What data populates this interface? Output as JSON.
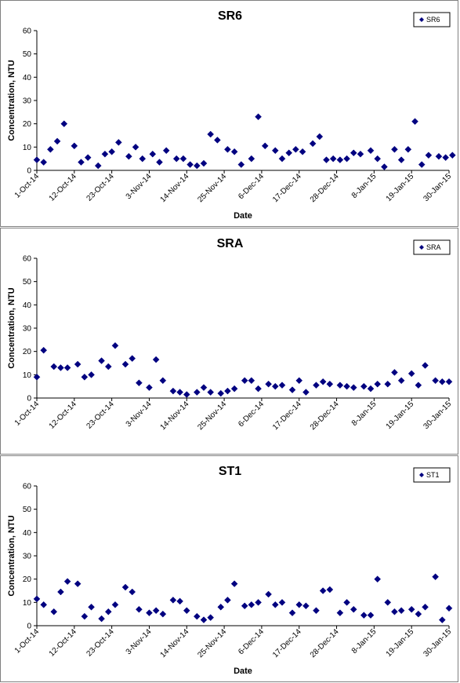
{
  "chart_data": [
    {
      "type": "scatter",
      "title": "SR6",
      "xlabel": "Date",
      "ylabel": "Concentration, NTU",
      "ylim": [
        0,
        60
      ],
      "yticks": [
        "0",
        "10",
        "20",
        "30",
        "40",
        "50",
        "60"
      ],
      "xlim": [
        "2014-10-01",
        "2015-01-30"
      ],
      "xticks": [
        "1-Oct-14",
        "12-Oct-14",
        "23-Oct-14",
        "3-Nov-14",
        "14-Nov-14",
        "25-Nov-14",
        "6-Dec-14",
        "17-Dec-14",
        "28-Dec-14",
        "8-Jan-15",
        "19-Jan-15",
        "30-Jan-15"
      ],
      "grid": false,
      "legend_position": "top-right",
      "marker_color": "#000080",
      "series": [
        {
          "name": "SR6",
          "x": [
            "2014-10-01",
            "2014-10-03",
            "2014-10-05",
            "2014-10-07",
            "2014-10-09",
            "2014-10-12",
            "2014-10-14",
            "2014-10-16",
            "2014-10-19",
            "2014-10-21",
            "2014-10-23",
            "2014-10-25",
            "2014-10-28",
            "2014-10-30",
            "2014-11-01",
            "2014-11-04",
            "2014-11-06",
            "2014-11-08",
            "2014-11-11",
            "2014-11-13",
            "2014-11-15",
            "2014-11-17",
            "2014-11-19",
            "2014-11-21",
            "2014-11-23",
            "2014-11-26",
            "2014-11-28",
            "2014-11-30",
            "2014-12-03",
            "2014-12-05",
            "2014-12-07",
            "2014-12-10",
            "2014-12-12",
            "2014-12-14",
            "2014-12-16",
            "2014-12-18",
            "2014-12-21",
            "2014-12-23",
            "2014-12-25",
            "2014-12-27",
            "2014-12-29",
            "2014-12-31",
            "2015-01-02",
            "2015-01-04",
            "2015-01-07",
            "2015-01-09",
            "2015-01-11",
            "2015-01-14",
            "2015-01-16",
            "2015-01-18",
            "2015-01-20",
            "2015-01-22",
            "2015-01-24",
            "2015-01-27",
            "2015-01-29",
            "2015-01-31"
          ],
          "y": [
            4.5,
            3.5,
            9.0,
            12.5,
            20.0,
            10.5,
            3.5,
            5.5,
            2.0,
            7.0,
            8.0,
            12.0,
            6.0,
            10.0,
            5.0,
            7.0,
            3.5,
            8.5,
            5.0,
            5.0,
            2.5,
            2.0,
            3.0,
            15.5,
            13.0,
            9.0,
            8.0,
            2.5,
            5.0,
            23.0,
            10.5,
            8.5,
            5.0,
            7.5,
            9.0,
            8.0,
            11.5,
            14.5,
            4.5,
            5.0,
            4.5,
            5.0,
            7.5,
            7.0,
            8.5,
            5.0,
            1.5,
            9.0,
            4.5,
            9.0,
            21.0,
            2.5,
            6.5,
            6.0,
            5.5,
            6.5
          ]
        }
      ]
    },
    {
      "type": "scatter",
      "title": "SRA",
      "xlabel": "",
      "ylabel": "Concentration, NTU",
      "ylim": [
        0,
        60
      ],
      "yticks": [
        "0",
        "10",
        "20",
        "30",
        "40",
        "50",
        "60"
      ],
      "xlim": [
        "2014-10-01",
        "2015-01-30"
      ],
      "xticks": [
        "1-Oct-14",
        "12-Oct-14",
        "23-Oct-14",
        "3-Nov-14",
        "14-Nov-14",
        "25-Nov-14",
        "6-Dec-14",
        "17-Dec-14",
        "28-Dec-14",
        "8-Jan-15",
        "19-Jan-15",
        "30-Jan-15"
      ],
      "grid": false,
      "legend_position": "top-right",
      "marker_color": "#000080",
      "series": [
        {
          "name": "SRA",
          "x": [
            "2014-10-01",
            "2014-10-03",
            "2014-10-06",
            "2014-10-08",
            "2014-10-10",
            "2014-10-13",
            "2014-10-15",
            "2014-10-17",
            "2014-10-20",
            "2014-10-22",
            "2014-10-24",
            "2014-10-27",
            "2014-10-29",
            "2014-10-31",
            "2014-11-03",
            "2014-11-05",
            "2014-11-07",
            "2014-11-10",
            "2014-11-12",
            "2014-11-14",
            "2014-11-17",
            "2014-11-19",
            "2014-11-21",
            "2014-11-24",
            "2014-11-26",
            "2014-11-28",
            "2014-12-01",
            "2014-12-03",
            "2014-12-05",
            "2014-12-08",
            "2014-12-10",
            "2014-12-12",
            "2014-12-15",
            "2014-12-17",
            "2014-12-19",
            "2014-12-22",
            "2014-12-24",
            "2014-12-26",
            "2014-12-29",
            "2014-12-31",
            "2015-01-02",
            "2015-01-05",
            "2015-01-07",
            "2015-01-09",
            "2015-01-12",
            "2015-01-14",
            "2015-01-16",
            "2015-01-19",
            "2015-01-21",
            "2015-01-23",
            "2015-01-26",
            "2015-01-28",
            "2015-01-30"
          ],
          "y": [
            9.0,
            20.5,
            13.5,
            13.0,
            13.0,
            14.5,
            9.0,
            10.0,
            16.0,
            13.5,
            22.5,
            14.5,
            17.0,
            6.5,
            4.5,
            16.5,
            7.5,
            3.0,
            2.5,
            1.5,
            2.5,
            4.5,
            2.5,
            2.0,
            3.0,
            4.0,
            7.5,
            7.5,
            4.0,
            6.0,
            5.0,
            5.5,
            3.5,
            7.5,
            2.5,
            5.5,
            7.0,
            6.0,
            5.5,
            5.0,
            4.5,
            5.0,
            4.0,
            6.0,
            6.0,
            11.0,
            7.5,
            10.5,
            5.5,
            14.0,
            7.5,
            7.0,
            7.0
          ]
        }
      ]
    },
    {
      "type": "scatter",
      "title": "ST1",
      "xlabel": "Date",
      "ylabel": "Concentration, NTU",
      "ylim": [
        0,
        60
      ],
      "yticks": [
        "0",
        "10",
        "20",
        "30",
        "40",
        "50",
        "60"
      ],
      "xlim": [
        "2014-10-01",
        "2015-01-30"
      ],
      "xticks": [
        "1-Oct-14",
        "12-Oct-14",
        "23-Oct-14",
        "3-Nov-14",
        "14-Nov-14",
        "25-Nov-14",
        "6-Dec-14",
        "17-Dec-14",
        "28-Dec-14",
        "8-Jan-15",
        "19-Jan-15",
        "30-Jan-15"
      ],
      "grid": false,
      "legend_position": "top-right",
      "marker_color": "#000080",
      "series": [
        {
          "name": "ST1",
          "x": [
            "2014-10-01",
            "2014-10-03",
            "2014-10-06",
            "2014-10-08",
            "2014-10-10",
            "2014-10-13",
            "2014-10-15",
            "2014-10-17",
            "2014-10-20",
            "2014-10-22",
            "2014-10-24",
            "2014-10-27",
            "2014-10-29",
            "2014-10-31",
            "2014-11-03",
            "2014-11-05",
            "2014-11-07",
            "2014-11-10",
            "2014-11-12",
            "2014-11-14",
            "2014-11-17",
            "2014-11-19",
            "2014-11-21",
            "2014-11-24",
            "2014-11-26",
            "2014-11-28",
            "2014-12-01",
            "2014-12-03",
            "2014-12-05",
            "2014-12-08",
            "2014-12-10",
            "2014-12-12",
            "2014-12-15",
            "2014-12-17",
            "2014-12-19",
            "2014-12-22",
            "2014-12-24",
            "2014-12-26",
            "2014-12-29",
            "2014-12-31",
            "2015-01-02",
            "2015-01-05",
            "2015-01-07",
            "2015-01-09",
            "2015-01-12",
            "2015-01-14",
            "2015-01-16",
            "2015-01-19",
            "2015-01-21",
            "2015-01-23",
            "2015-01-26",
            "2015-01-28",
            "2015-01-30"
          ],
          "y": [
            11.5,
            9.0,
            6.0,
            14.5,
            19.0,
            18.0,
            4.0,
            8.0,
            3.0,
            6.0,
            9.0,
            16.5,
            14.5,
            7.0,
            5.5,
            6.5,
            5.0,
            11.0,
            10.5,
            6.5,
            4.0,
            2.5,
            3.5,
            8.0,
            11.0,
            18.0,
            8.5,
            9.0,
            10.0,
            13.5,
            9.0,
            10.0,
            5.5,
            9.0,
            8.5,
            6.5,
            15.0,
            15.5,
            5.5,
            10.0,
            7.0,
            4.5,
            4.5,
            20.0,
            10.0,
            6.0,
            6.5,
            7.0,
            5.0,
            8.0,
            21.0,
            2.5,
            7.5
          ]
        }
      ]
    }
  ]
}
